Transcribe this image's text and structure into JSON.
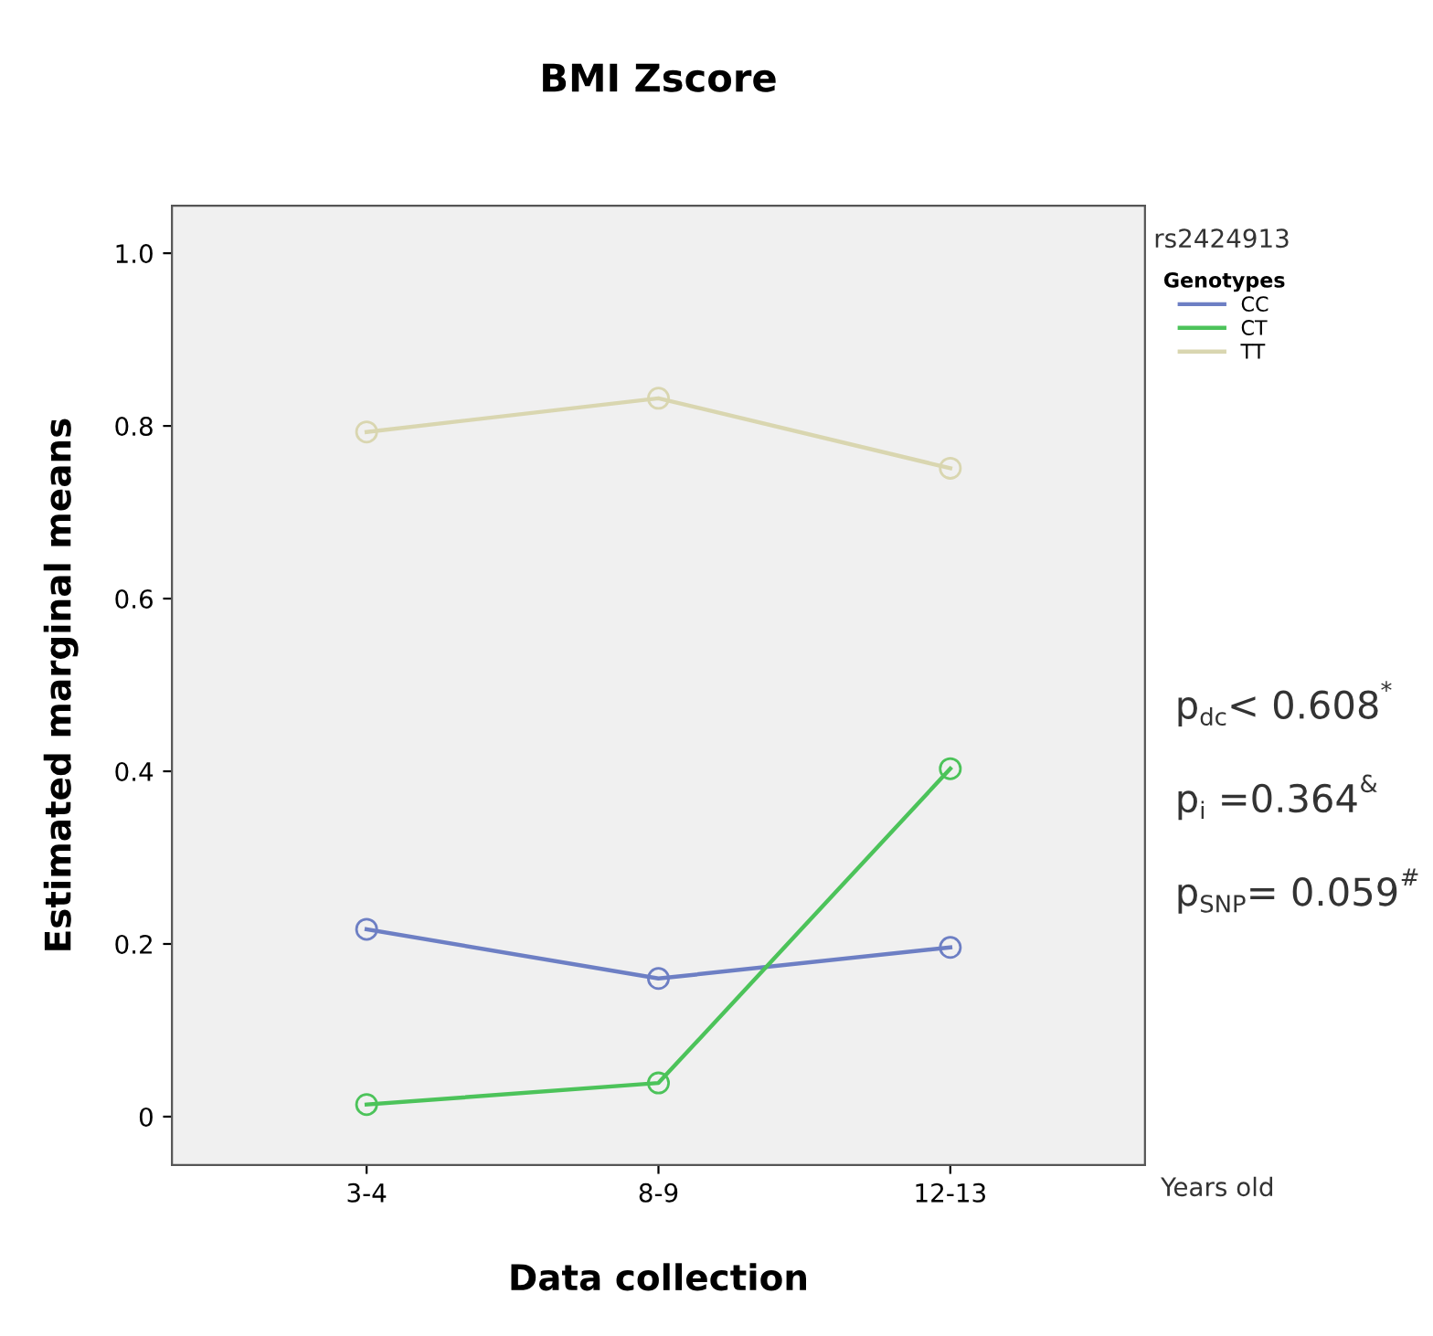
{
  "chart_data": {
    "type": "line",
    "title": "BMI Zscore",
    "xlabel": "Data collection",
    "ylabel": "Estimated marginal means",
    "legend_title": "Genotypes",
    "categories": [
      "3-4",
      "8-9",
      "12-13"
    ],
    "series": [
      {
        "name": "CC",
        "color": "#6d7fc4",
        "values": [
          0.217,
          0.16,
          0.196
        ]
      },
      {
        "name": "CT",
        "color": "#4cc35a",
        "values": [
          0.014,
          0.039,
          0.403
        ]
      },
      {
        "name": "TT",
        "color": "#d9d6b0",
        "values": [
          0.793,
          0.832,
          0.751
        ]
      }
    ],
    "ylim": [
      -0.056,
      1.055
    ],
    "yticks": [
      {
        "value": 0,
        "label": "0"
      },
      0.2,
      0.4,
      0.6,
      0.8,
      {
        "value": 1.0,
        "label": "1.0"
      }
    ],
    "grid": false,
    "legend": "top right",
    "marker": "circle",
    "line_style": "solid",
    "annotations": [
      "rs2424913",
      "Years old",
      "p$_{dc}$< 0.608$^{*}$",
      "p$_{i}$ =0.364$^{&}$",
      "p$_{SNP}$= 0.059$^{#}$"
    ]
  }
}
